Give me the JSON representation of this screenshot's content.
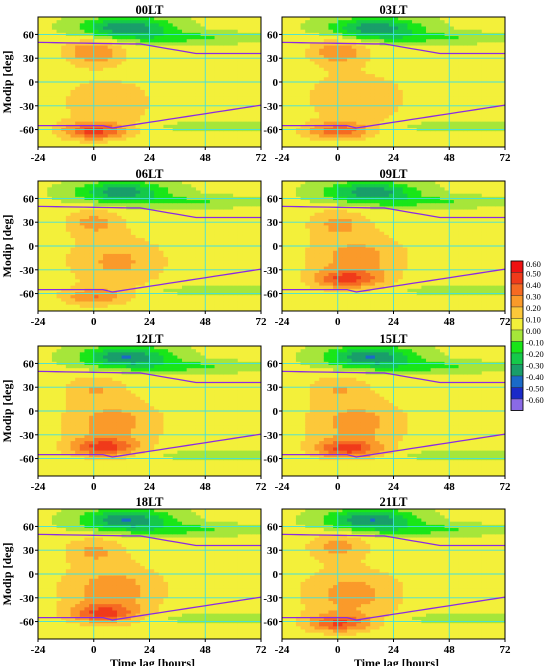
{
  "chart_data": {
    "type": "heatmap",
    "layout_grid": {
      "rows": 4,
      "cols": 2
    },
    "xlabel": "Time lag [hours]",
    "ylabel": "Modip [deg]",
    "x_ticks": [
      "-24",
      "0",
      "24",
      "48",
      "72"
    ],
    "y_ticks": [
      "60",
      "30",
      "0",
      "-30",
      "-60"
    ],
    "xlim": [
      -24,
      72
    ],
    "ylim": [
      -82,
      82
    ],
    "grid": true,
    "grid_color": "#40e0e0",
    "contour_line_color": "#8a2be2",
    "colorbar": {
      "ticks": [
        "0.60",
        "0.50",
        "0.40",
        "0.30",
        "0.20",
        "0.10",
        "0.00",
        "-0.10",
        "-0.20",
        "-0.30",
        "-0.40",
        "-0.50",
        "-0.60"
      ],
      "colors": [
        "#ee1111",
        "#f03a1a",
        "#f56a22",
        "#fa9a2a",
        "#fcc83a",
        "#f3f03a",
        "#a6e63a",
        "#19e619",
        "#15c94a",
        "#199e6a",
        "#1a6ac8",
        "#1a2ac8",
        "#8a6ae6"
      ]
    },
    "panels": [
      {
        "title": "00LT",
        "top_band": {
          "center": 14,
          "width": 24,
          "minimum": -0.42
        },
        "north_yellow": {
          "lag": 0,
          "modip": 38,
          "value": 0.28
        },
        "south_peak": {
          "lag": 0,
          "modip": -62,
          "value": 0.38
        },
        "mid_lat_peak": {
          "lag": 6,
          "modip": -25,
          "value": 0.15
        }
      },
      {
        "title": "03LT",
        "top_band": {
          "center": 16,
          "width": 24,
          "minimum": -0.4
        },
        "north_yellow": {
          "lag": 0,
          "modip": 38,
          "value": 0.25
        },
        "south_peak": {
          "lag": 0,
          "modip": -62,
          "value": 0.32
        },
        "mid_lat_peak": {
          "lag": 8,
          "modip": -20,
          "value": 0.18
        }
      },
      {
        "title": "06LT",
        "top_band": {
          "center": 12,
          "width": 24,
          "minimum": -0.38
        },
        "north_yellow": {
          "lag": 0,
          "modip": 30,
          "value": 0.2
        },
        "south_peak": {
          "lag": 0,
          "modip": -64,
          "value": 0.25
        },
        "mid_lat_peak": {
          "lag": 10,
          "modip": -20,
          "value": 0.2
        }
      },
      {
        "title": "09LT",
        "top_band": {
          "center": 14,
          "width": 24,
          "minimum": -0.4
        },
        "north_yellow": {
          "lag": 0,
          "modip": 30,
          "value": 0.18
        },
        "south_peak": {
          "lag": 4,
          "modip": -42,
          "value": 0.32
        },
        "mid_lat_peak": {
          "lag": 8,
          "modip": -15,
          "value": 0.22
        }
      },
      {
        "title": "12LT",
        "top_band": {
          "center": 14,
          "width": 24,
          "minimum": -0.42
        },
        "north_yellow": {
          "lag": 0,
          "modip": 30,
          "value": 0.15
        },
        "south_peak": {
          "lag": 4,
          "modip": -46,
          "value": 0.35
        },
        "mid_lat_peak": {
          "lag": 8,
          "modip": -15,
          "value": 0.22
        }
      },
      {
        "title": "15LT",
        "top_band": {
          "center": 14,
          "width": 24,
          "minimum": -0.42
        },
        "north_yellow": {
          "lag": 0,
          "modip": 30,
          "value": 0.15
        },
        "south_peak": {
          "lag": 4,
          "modip": -48,
          "value": 0.36
        },
        "mid_lat_peak": {
          "lag": 8,
          "modip": -15,
          "value": 0.22
        }
      },
      {
        "title": "18LT",
        "top_band": {
          "center": 14,
          "width": 24,
          "minimum": -0.42
        },
        "north_yellow": {
          "lag": 0,
          "modip": 30,
          "value": 0.18
        },
        "south_peak": {
          "lag": 4,
          "modip": -50,
          "value": 0.34
        },
        "mid_lat_peak": {
          "lag": 8,
          "modip": -20,
          "value": 0.24
        }
      },
      {
        "title": "21LT",
        "top_band": {
          "center": 14,
          "width": 24,
          "minimum": -0.42
        },
        "north_yellow": {
          "lag": 0,
          "modip": 35,
          "value": 0.22
        },
        "south_peak": {
          "lag": 0,
          "modip": -62,
          "value": 0.34
        },
        "mid_lat_peak": {
          "lag": 6,
          "modip": -25,
          "value": 0.22
        }
      }
    ]
  }
}
